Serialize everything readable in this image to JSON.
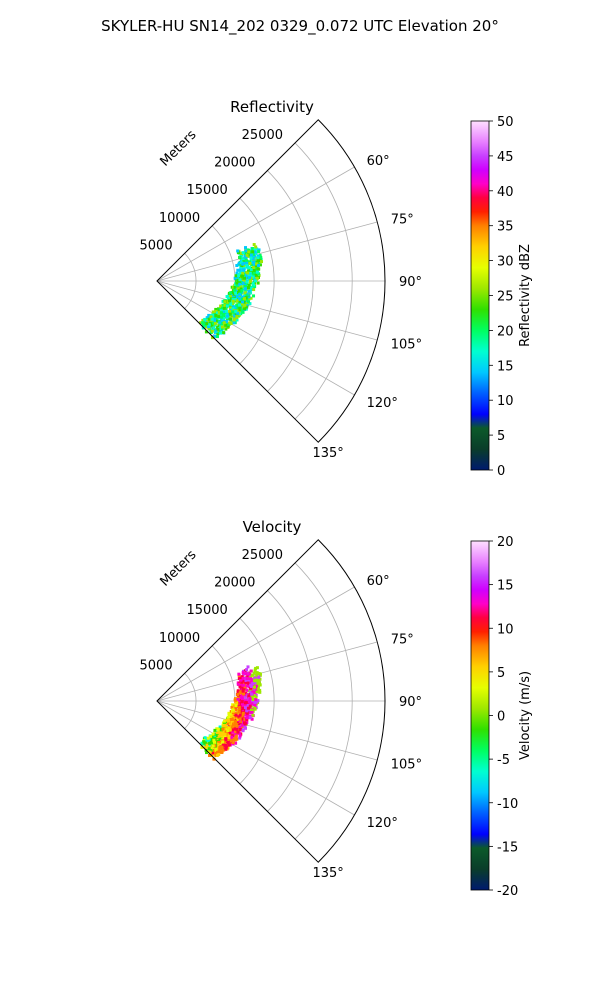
{
  "figure_title": "SKYLER-HU  SN14_202  0329_0.072 UTC Elevation 20°",
  "chart_data": [
    {
      "type": "polar-sector",
      "title": "Reflectivity",
      "radial_label": "Meters",
      "radial_ticks": [
        "5000",
        "10000",
        "15000",
        "20000",
        "25000"
      ],
      "angle_ticks": [
        "60°",
        "75°",
        "90°",
        "105°",
        "120°",
        "135°"
      ],
      "colorbar": {
        "label": "Reflectivity dBZ",
        "range": [
          0,
          50
        ],
        "ticks": [
          "0",
          "5",
          "10",
          "15",
          "20",
          "25",
          "30",
          "35",
          "40",
          "45",
          "50"
        ]
      }
    },
    {
      "type": "polar-sector",
      "title": "Velocity",
      "radial_label": "Meters",
      "radial_ticks": [
        "5000",
        "10000",
        "15000",
        "20000",
        "25000"
      ],
      "angle_ticks": [
        "60°",
        "75°",
        "90°",
        "105°",
        "120°",
        "135°"
      ],
      "colorbar": {
        "label": "Velocity (m/s)",
        "range": [
          -20,
          20
        ],
        "ticks": [
          "-20",
          "-15",
          "-10",
          "-5",
          "0",
          "5",
          "10",
          "15",
          "20"
        ]
      }
    }
  ]
}
